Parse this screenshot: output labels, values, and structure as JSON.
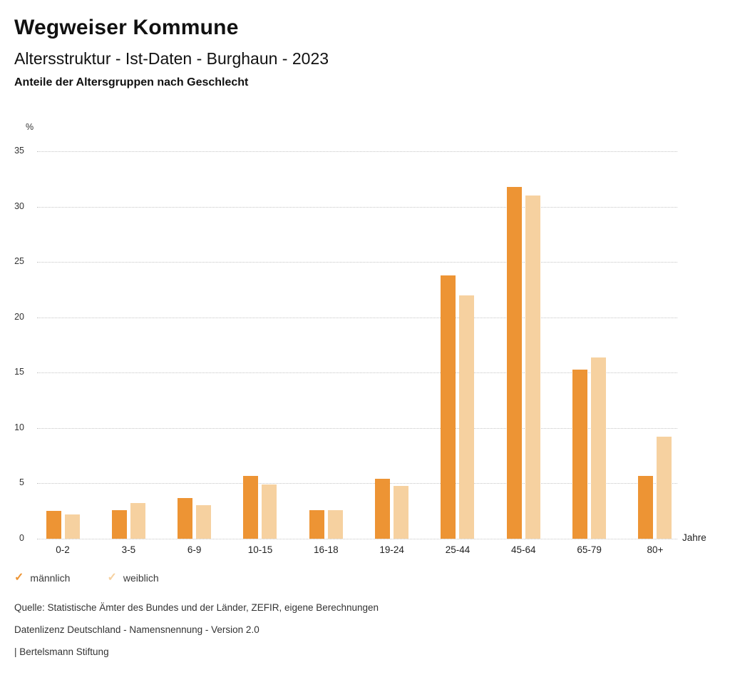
{
  "header": {
    "title": "Wegweiser Kommune",
    "subtitle": "Altersstruktur - Ist-Daten - Burghaun - 2023",
    "description": "Anteile der Altersgruppen nach Geschlecht"
  },
  "chart_data": {
    "type": "bar",
    "title": "Anteile der Altersgruppen nach Geschlecht",
    "categories": [
      "0-2",
      "3-5",
      "6-9",
      "10-15",
      "16-18",
      "19-24",
      "25-44",
      "45-64",
      "65-79",
      "80+"
    ],
    "series": [
      {
        "name": "männlich",
        "color": "#ED9434",
        "values": [
          2.5,
          2.6,
          3.7,
          5.7,
          2.6,
          5.4,
          23.8,
          31.8,
          15.3,
          5.7
        ]
      },
      {
        "name": "weiblich",
        "color": "#F6D1A0",
        "values": [
          2.2,
          3.2,
          3.0,
          4.9,
          2.6,
          4.8,
          22.0,
          31.0,
          16.4,
          9.2
        ]
      }
    ],
    "xlabel": "Jahre",
    "ylabel": "%",
    "ylim": [
      0,
      35
    ],
    "yticks": [
      0,
      5,
      10,
      15,
      20,
      25,
      30,
      35
    ],
    "grid": "horizontal-dotted",
    "gridline_color": "#c5c5c5",
    "legend_position": "bottom-left"
  },
  "legend": {
    "check_glyph": "✓"
  },
  "footer": {
    "source": "Quelle: Statistische Ämter des Bundes und der Länder, ZEFIR, eigene Berechnungen",
    "license": "Datenlizenz Deutschland - Namensnennung - Version 2.0",
    "attribution": "| Bertelsmann Stiftung"
  }
}
